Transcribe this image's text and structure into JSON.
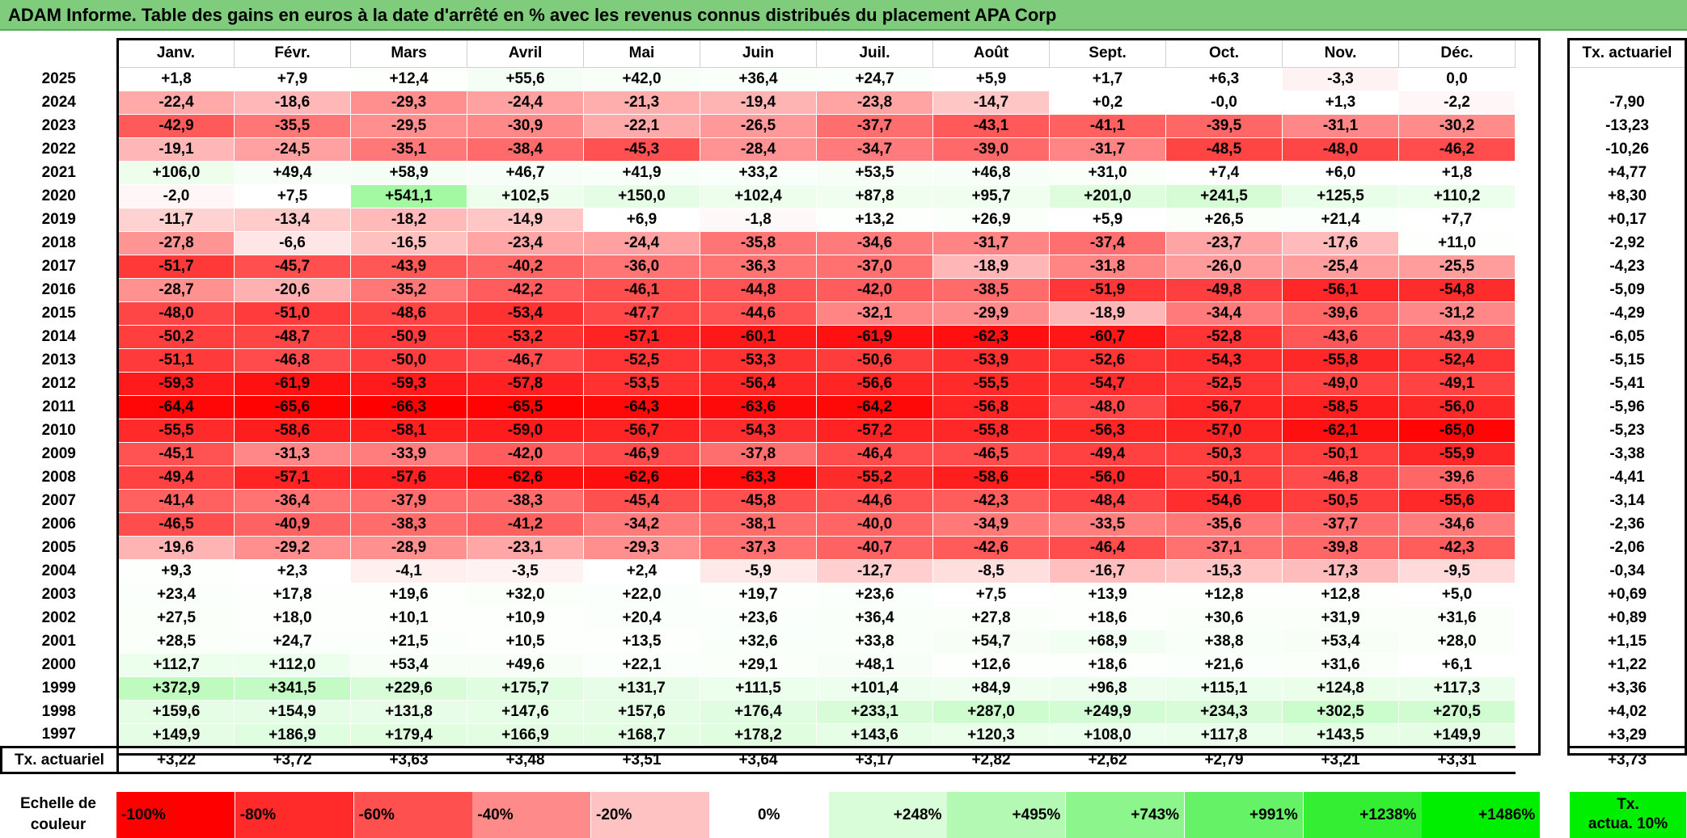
{
  "title": "ADAM Informe. Table des gains en euros à la date d'arrêté en % avec les revenus connus distribués du placement APA Corp",
  "months": [
    "Janv.",
    "Févr.",
    "Mars",
    "Avril",
    "Mai",
    "Juin",
    "Juil.",
    "Août",
    "Sept.",
    "Oct.",
    "Nov.",
    "Déc."
  ],
  "tx_header": "Tx. actuariel",
  "rows": [
    {
      "year": "2025",
      "values": [
        "+1,8",
        "+7,9",
        "+12,4",
        "+55,6",
        "+42,0",
        "+36,4",
        "+24,7",
        "+5,9",
        "+1,7",
        "+6,3",
        "-3,3",
        "0,0"
      ],
      "tx": ""
    },
    {
      "year": "2024",
      "values": [
        "-22,4",
        "-18,6",
        "-29,3",
        "-24,4",
        "-21,3",
        "-19,4",
        "-23,8",
        "-14,7",
        "+0,2",
        "-0,0",
        "+1,3",
        "-2,2"
      ],
      "tx": "-7,90"
    },
    {
      "year": "2023",
      "values": [
        "-42,9",
        "-35,5",
        "-29,5",
        "-30,9",
        "-22,1",
        "-26,5",
        "-37,7",
        "-43,1",
        "-41,1",
        "-39,5",
        "-31,1",
        "-30,2"
      ],
      "tx": "-13,23"
    },
    {
      "year": "2022",
      "values": [
        "-19,1",
        "-24,5",
        "-35,1",
        "-38,4",
        "-45,3",
        "-28,4",
        "-34,7",
        "-39,0",
        "-31,7",
        "-48,5",
        "-48,0",
        "-46,2"
      ],
      "tx": "-10,26"
    },
    {
      "year": "2021",
      "values": [
        "+106,0",
        "+49,4",
        "+58,9",
        "+46,7",
        "+41,9",
        "+33,2",
        "+53,5",
        "+46,8",
        "+31,0",
        "+7,4",
        "+6,0",
        "+1,8"
      ],
      "tx": "+4,77"
    },
    {
      "year": "2020",
      "values": [
        "-2,0",
        "+7,5",
        "+541,1",
        "+102,5",
        "+150,0",
        "+102,4",
        "+87,8",
        "+95,7",
        "+201,0",
        "+241,5",
        "+125,5",
        "+110,2"
      ],
      "tx": "+8,30"
    },
    {
      "year": "2019",
      "values": [
        "-11,7",
        "-13,4",
        "-18,2",
        "-14,9",
        "+6,9",
        "-1,8",
        "+13,2",
        "+26,9",
        "+5,9",
        "+26,5",
        "+21,4",
        "+7,7"
      ],
      "tx": "+0,17"
    },
    {
      "year": "2018",
      "values": [
        "-27,8",
        "-6,6",
        "-16,5",
        "-23,4",
        "-24,4",
        "-35,8",
        "-34,6",
        "-31,7",
        "-37,4",
        "-23,7",
        "-17,6",
        "+11,0"
      ],
      "tx": "-2,92"
    },
    {
      "year": "2017",
      "values": [
        "-51,7",
        "-45,7",
        "-43,9",
        "-40,2",
        "-36,0",
        "-36,3",
        "-37,0",
        "-18,9",
        "-31,8",
        "-26,0",
        "-25,4",
        "-25,5"
      ],
      "tx": "-4,23"
    },
    {
      "year": "2016",
      "values": [
        "-28,7",
        "-20,6",
        "-35,2",
        "-42,2",
        "-46,1",
        "-44,8",
        "-42,0",
        "-38,5",
        "-51,9",
        "-49,8",
        "-56,1",
        "-54,8"
      ],
      "tx": "-5,09"
    },
    {
      "year": "2015",
      "values": [
        "-48,0",
        "-51,0",
        "-48,6",
        "-53,4",
        "-47,7",
        "-44,6",
        "-32,1",
        "-29,9",
        "-18,9",
        "-34,4",
        "-39,6",
        "-31,2"
      ],
      "tx": "-4,29"
    },
    {
      "year": "2014",
      "values": [
        "-50,2",
        "-48,7",
        "-50,9",
        "-53,2",
        "-57,1",
        "-60,1",
        "-61,9",
        "-62,3",
        "-60,7",
        "-52,8",
        "-43,6",
        "-43,9"
      ],
      "tx": "-6,05"
    },
    {
      "year": "2013",
      "values": [
        "-51,1",
        "-46,8",
        "-50,0",
        "-46,7",
        "-52,5",
        "-53,3",
        "-50,6",
        "-53,9",
        "-52,6",
        "-54,3",
        "-55,8",
        "-52,4"
      ],
      "tx": "-5,15"
    },
    {
      "year": "2012",
      "values": [
        "-59,3",
        "-61,9",
        "-59,3",
        "-57,8",
        "-53,5",
        "-56,4",
        "-56,6",
        "-55,5",
        "-54,7",
        "-52,5",
        "-49,0",
        "-49,1"
      ],
      "tx": "-5,41"
    },
    {
      "year": "2011",
      "values": [
        "-64,4",
        "-65,6",
        "-66,3",
        "-65,5",
        "-64,3",
        "-63,6",
        "-64,2",
        "-56,8",
        "-48,0",
        "-56,7",
        "-58,5",
        "-56,0"
      ],
      "tx": "-5,96"
    },
    {
      "year": "2010",
      "values": [
        "-55,5",
        "-58,6",
        "-58,1",
        "-59,0",
        "-56,7",
        "-54,3",
        "-57,2",
        "-55,8",
        "-56,3",
        "-57,0",
        "-62,1",
        "-65,0"
      ],
      "tx": "-5,23"
    },
    {
      "year": "2009",
      "values": [
        "-45,1",
        "-31,3",
        "-33,9",
        "-42,0",
        "-46,9",
        "-37,8",
        "-46,4",
        "-46,5",
        "-49,4",
        "-50,3",
        "-50,1",
        "-55,9"
      ],
      "tx": "-3,38"
    },
    {
      "year": "2008",
      "values": [
        "-49,4",
        "-57,1",
        "-57,6",
        "-62,6",
        "-62,6",
        "-63,3",
        "-55,2",
        "-58,6",
        "-56,0",
        "-50,1",
        "-46,8",
        "-39,6"
      ],
      "tx": "-4,41"
    },
    {
      "year": "2007",
      "values": [
        "-41,4",
        "-36,4",
        "-37,9",
        "-38,3",
        "-45,4",
        "-45,8",
        "-44,6",
        "-42,3",
        "-48,4",
        "-54,6",
        "-50,5",
        "-55,6"
      ],
      "tx": "-3,14"
    },
    {
      "year": "2006",
      "values": [
        "-46,5",
        "-40,9",
        "-38,3",
        "-41,2",
        "-34,2",
        "-38,1",
        "-40,0",
        "-34,9",
        "-33,5",
        "-35,6",
        "-37,7",
        "-34,6"
      ],
      "tx": "-2,36"
    },
    {
      "year": "2005",
      "values": [
        "-19,6",
        "-29,2",
        "-28,9",
        "-23,1",
        "-29,3",
        "-37,3",
        "-40,7",
        "-42,6",
        "-46,4",
        "-37,1",
        "-39,8",
        "-42,3"
      ],
      "tx": "-2,06"
    },
    {
      "year": "2004",
      "values": [
        "+9,3",
        "+2,3",
        "-4,1",
        "-3,5",
        "+2,4",
        "-5,9",
        "-12,7",
        "-8,5",
        "-16,7",
        "-15,3",
        "-17,3",
        "-9,5"
      ],
      "tx": "-0,34"
    },
    {
      "year": "2003",
      "values": [
        "+23,4",
        "+17,8",
        "+19,6",
        "+32,0",
        "+22,0",
        "+19,7",
        "+23,6",
        "+7,5",
        "+13,9",
        "+12,8",
        "+12,8",
        "+5,0"
      ],
      "tx": "+0,69"
    },
    {
      "year": "2002",
      "values": [
        "+27,5",
        "+18,0",
        "+10,1",
        "+10,9",
        "+20,4",
        "+23,6",
        "+36,4",
        "+27,8",
        "+18,6",
        "+30,6",
        "+31,9",
        "+31,6"
      ],
      "tx": "+0,89"
    },
    {
      "year": "2001",
      "values": [
        "+28,5",
        "+24,7",
        "+21,5",
        "+10,5",
        "+13,5",
        "+32,6",
        "+33,8",
        "+54,7",
        "+68,9",
        "+38,8",
        "+53,4",
        "+28,0"
      ],
      "tx": "+1,15"
    },
    {
      "year": "2000",
      "values": [
        "+112,7",
        "+112,0",
        "+53,4",
        "+49,6",
        "+22,1",
        "+29,1",
        "+48,1",
        "+12,6",
        "+18,6",
        "+21,6",
        "+31,6",
        "+6,1"
      ],
      "tx": "+1,22"
    },
    {
      "year": "1999",
      "values": [
        "+372,9",
        "+341,5",
        "+229,6",
        "+175,7",
        "+131,7",
        "+111,5",
        "+101,4",
        "+84,9",
        "+96,8",
        "+115,1",
        "+124,8",
        "+117,3"
      ],
      "tx": "+3,36"
    },
    {
      "year": "1998",
      "values": [
        "+159,6",
        "+154,9",
        "+131,8",
        "+147,6",
        "+157,6",
        "+176,4",
        "+233,1",
        "+287,0",
        "+249,9",
        "+234,3",
        "+302,5",
        "+270,5"
      ],
      "tx": "+4,02"
    },
    {
      "year": "1997",
      "values": [
        "+149,9",
        "+186,9",
        "+179,4",
        "+166,9",
        "+168,7",
        "+178,2",
        "+143,6",
        "+120,3",
        "+108,0",
        "+117,8",
        "+143,5",
        "+149,9"
      ],
      "tx": "+3,29"
    }
  ],
  "footer": {
    "label": "Tx. actuariel",
    "values": [
      "+3,22",
      "+3,72",
      "+3,63",
      "+3,48",
      "+3,51",
      "+3,64",
      "+3,17",
      "+2,82",
      "+2,62",
      "+2,79",
      "+3,21",
      "+3,31"
    ],
    "tx": "+3,73"
  },
  "scale": {
    "label_line1": "Echelle de",
    "label_line2": "couleur",
    "items": [
      {
        "text": "-100%",
        "color": "#ff0000",
        "align": "left"
      },
      {
        "text": "-80%",
        "color": "#ff2a2a",
        "align": "left"
      },
      {
        "text": "-60%",
        "color": "#ff5050",
        "align": "left"
      },
      {
        "text": "-40%",
        "color": "#ff8a8a",
        "align": "left"
      },
      {
        "text": "-20%",
        "color": "#ffc2c2",
        "align": "left"
      },
      {
        "text": "0%",
        "color": "#ffffff",
        "align": "center"
      },
      {
        "text": "+248%",
        "color": "#d9fdd9",
        "align": "right"
      },
      {
        "text": "+495%",
        "color": "#b3f9b3",
        "align": "right"
      },
      {
        "text": "+743%",
        "color": "#8cf58c",
        "align": "right"
      },
      {
        "text": "+991%",
        "color": "#66f266",
        "align": "right"
      },
      {
        "text": "+1238%",
        "color": "#33ee33",
        "align": "right"
      },
      {
        "text": "+1486%",
        "color": "#00ee00",
        "align": "right"
      }
    ],
    "tx_line1": "Tx.",
    "tx_line2": "actua. 10%",
    "tx_color": "#00ee00"
  }
}
